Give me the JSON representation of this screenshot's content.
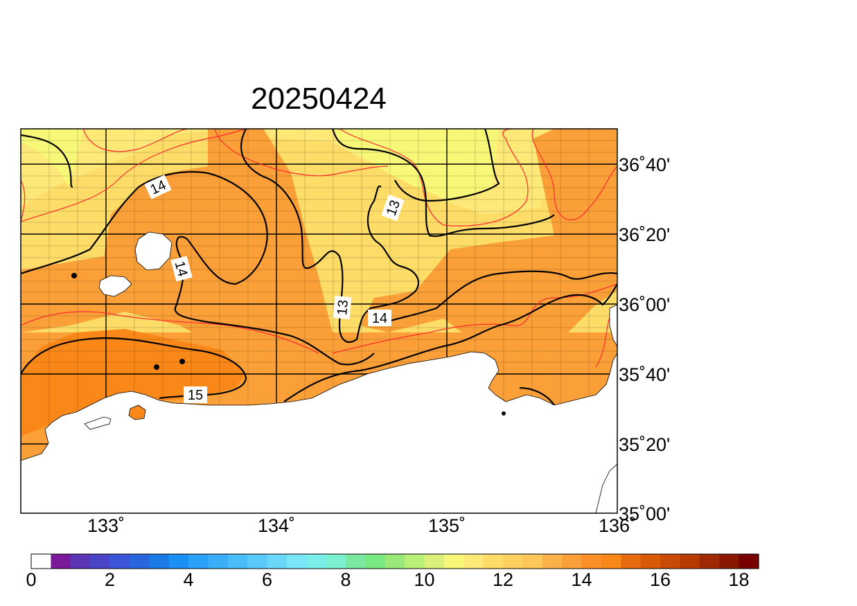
{
  "map": {
    "title": "20250424",
    "longitude_ticks": [
      "133˚",
      "134˚",
      "135˚",
      "136˚"
    ],
    "latitude_ticks": [
      "36˚40'",
      "36˚20'",
      "36˚00'",
      "35˚40'",
      "35˚20'",
      "35˚00'"
    ],
    "contour_labels": [
      "14",
      "14",
      "13",
      "13",
      "14",
      "15"
    ],
    "land_color": "#ffffff",
    "grid_color": "#000000",
    "isotherm_major_color": "#000000",
    "isotherm_minor_color": "#ff2a2a",
    "markers": 4
  },
  "colorbar": {
    "tick_labels": [
      "0",
      "2",
      "4",
      "6",
      "8",
      "10",
      "12",
      "14",
      "16",
      "18"
    ],
    "min": 0,
    "max": 18.5,
    "step": 0.5,
    "colors": [
      "#ffffff",
      "#7a1a9a",
      "#5a35b5",
      "#4a45c8",
      "#3a55d8",
      "#2a65e0",
      "#1a7ae8",
      "#1a8ff5",
      "#2aa0f8",
      "#3aaff8",
      "#4abdf8",
      "#5acaf8",
      "#6ad6f8",
      "#7ae6fa",
      "#7aeee8",
      "#7af0d0",
      "#7ae8a0",
      "#7ae880",
      "#9ae878",
      "#baf078",
      "#daf078",
      "#f8f878",
      "#fde878",
      "#fddc68",
      "#fdd060",
      "#fdc858",
      "#fbb048",
      "#fba038",
      "#fb9028",
      "#fa8818",
      "#e86a10",
      "#d85a08",
      "#c84a05",
      "#b83a03",
      "#a02802",
      "#8a1800",
      "#780000"
    ]
  }
}
